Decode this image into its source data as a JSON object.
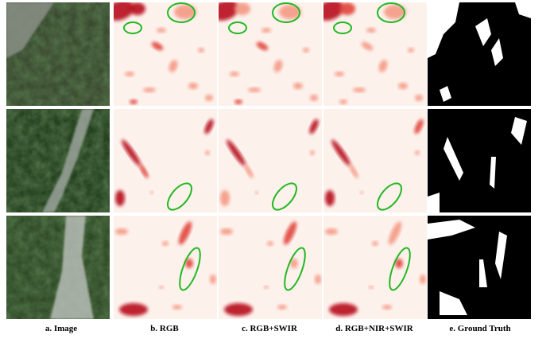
{
  "figure": {
    "captions": [
      "a. Image",
      "b. RGB",
      "c. RGB+SWIR",
      "d. RGB+NIR+SWIR",
      "e. Ground Truth"
    ]
  }
}
